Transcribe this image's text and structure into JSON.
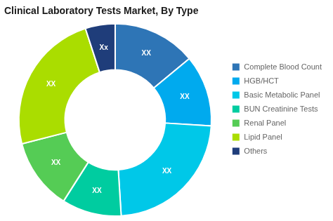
{
  "chart_data": {
    "type": "doughnut",
    "title": "Clinical Laboratory Tests Market, By Type",
    "categories": [
      "Complete Blood Count",
      "HGB/HCT",
      "Basic Metabolic Panel",
      "BUN Creatinine Tests",
      "Renal Panel",
      "Lipid Panel",
      "Others"
    ],
    "values": [
      14,
      12,
      23,
      10,
      12,
      24,
      5
    ],
    "value_labels": [
      "XX",
      "XX",
      "XX",
      "XX",
      "XX",
      "XX",
      "Xx"
    ],
    "colors": [
      "#2E75B6",
      "#00AAEE",
      "#00C8E8",
      "#00CCA0",
      "#55CC55",
      "#AADD00",
      "#1F3D7A"
    ],
    "legend": "right"
  }
}
